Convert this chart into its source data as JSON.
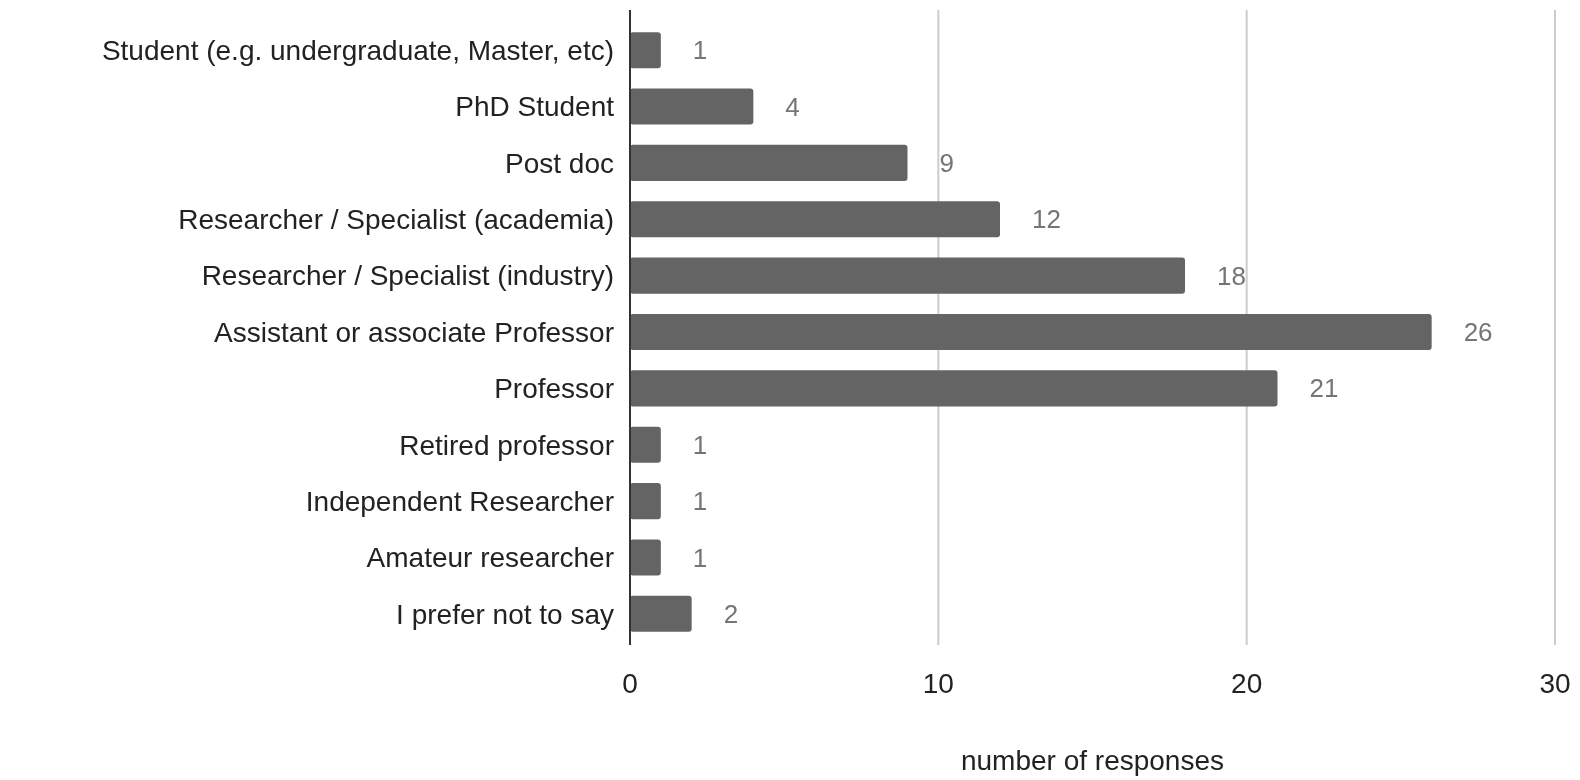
{
  "chart_data": {
    "type": "bar",
    "orientation": "horizontal",
    "xlabel": "number of responses",
    "categories": [
      "Student (e.g. undergraduate, Master, etc)",
      "PhD Student",
      "Post doc",
      "Researcher / Specialist (academia)",
      "Researcher / Specialist (industry)",
      "Assistant or associate Professor",
      "Professor",
      "Retired professor",
      "Independent Researcher",
      "Amateur researcher",
      "I prefer not to say"
    ],
    "values": [
      1,
      4,
      9,
      12,
      18,
      26,
      21,
      1,
      1,
      1,
      2
    ],
    "color": "#646464",
    "xlim": [
      0,
      30
    ],
    "xticks": [
      0,
      10,
      20,
      30
    ],
    "grid": "x",
    "data_labels": true
  }
}
